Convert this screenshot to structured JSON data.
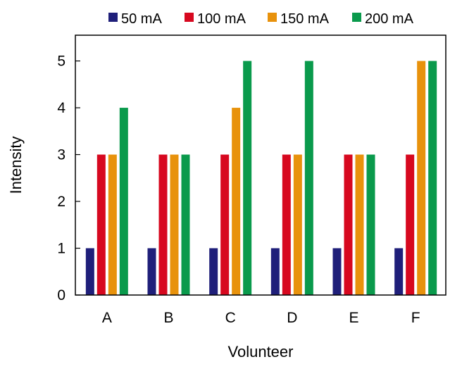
{
  "chart_data": {
    "type": "bar",
    "categories": [
      "A",
      "B",
      "C",
      "D",
      "E",
      "F"
    ],
    "series": [
      {
        "name": "50 mA",
        "color": "#1f1f7a",
        "values": [
          1,
          1,
          1,
          1,
          1,
          1
        ]
      },
      {
        "name": "100 mA",
        "color": "#d7081f",
        "values": [
          3,
          3,
          3,
          3,
          3,
          3
        ]
      },
      {
        "name": "150 mA",
        "color": "#e8920c",
        "values": [
          3,
          3,
          4,
          3,
          3,
          5
        ]
      },
      {
        "name": "200 mA",
        "color": "#0a9a4c",
        "values": [
          4,
          3,
          5,
          5,
          3,
          5
        ]
      }
    ],
    "xlabel": "Volunteer",
    "ylabel": "Intensity",
    "ylim": [
      0,
      5.55
    ],
    "yticks": [
      0,
      1,
      2,
      3,
      4,
      5
    ],
    "grid": false,
    "legend_position": "top"
  }
}
